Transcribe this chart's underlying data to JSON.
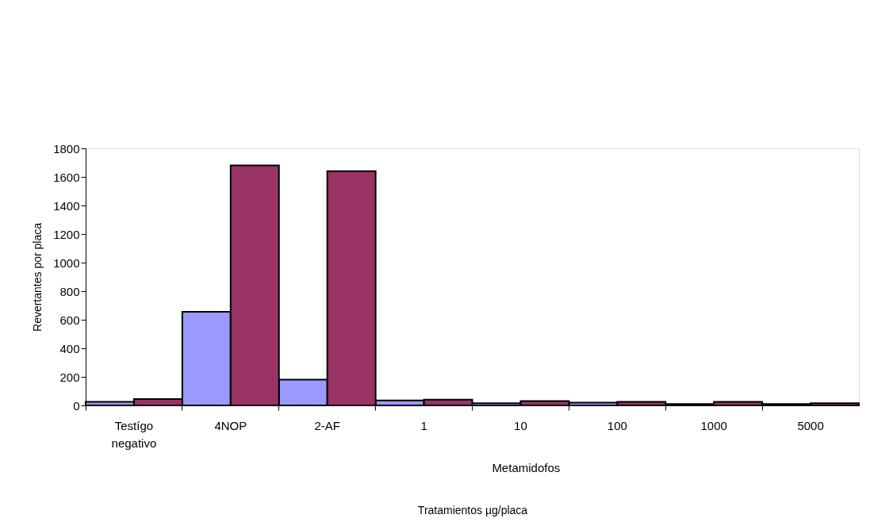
{
  "chart_data": {
    "type": "bar",
    "categories": [
      "Testígo negativo",
      "4NOP",
      "2-AF",
      "1",
      "10",
      "100",
      "1000",
      "5000"
    ],
    "series": [
      {
        "color": "#9999ff",
        "values": [
          25,
          655,
          180,
          35,
          15,
          20,
          10,
          10
        ]
      },
      {
        "color": "#993366",
        "values": [
          45,
          1680,
          1640,
          40,
          30,
          25,
          25,
          15
        ]
      }
    ],
    "ylim": [
      0,
      1800
    ],
    "yticks": [
      0,
      200,
      400,
      600,
      800,
      1000,
      1200,
      1400,
      1600,
      1800
    ],
    "ylabel": "Revertantes por placa",
    "xlabel": "Tratamientos µg/placa",
    "annotations": [
      "Metamidofos"
    ],
    "grid": false,
    "legend": false
  }
}
